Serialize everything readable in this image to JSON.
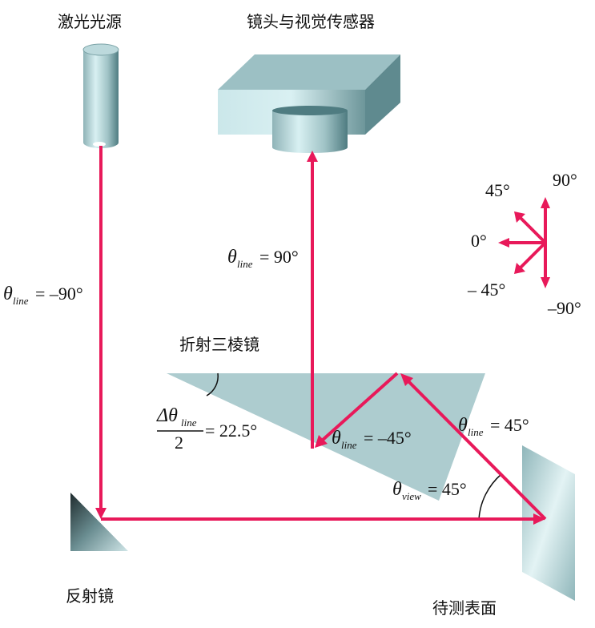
{
  "labels": {
    "laser": "激光光源",
    "sensor": "镜头与视觉传感器",
    "prism": "折射三棱镜",
    "mirror": "反射镜",
    "surface": "待测表面"
  },
  "compass": {
    "deg90": "90°",
    "deg45": "45°",
    "deg0": "0°",
    "degm45": "– 45°",
    "degm90": "–90°"
  },
  "annotations": {
    "theta": "θ",
    "delta_theta": "Δθ",
    "sub_line": "line",
    "sub_view": "view",
    "laser_angle": "= –90°",
    "sensor_angle": "= 90°",
    "prism_half_left": "2",
    "prism_half_right": "= 22.5°",
    "prism_inner_angle": "= –45°",
    "surface_line_angle": "= 45°",
    "view_angle": "= 45°"
  },
  "colors": {
    "ray": "#e8195a",
    "metal_light": "#cfe9ec",
    "metal_dark": "#5e8b90",
    "prism": "#a9c9cc"
  }
}
